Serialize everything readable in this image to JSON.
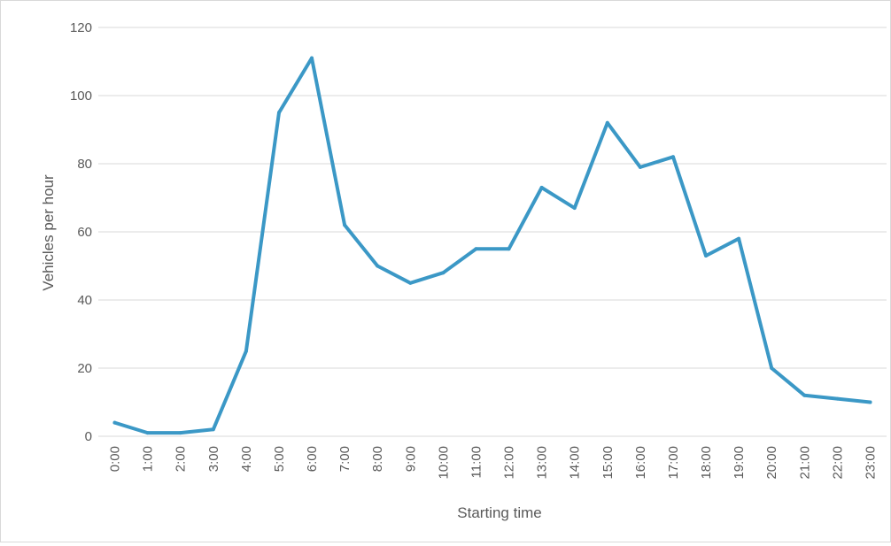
{
  "chart_data": {
    "type": "line",
    "title": "",
    "xlabel": "Starting time",
    "ylabel": "Vehicles per hour",
    "ylim": [
      0,
      120
    ],
    "yticks": [
      0,
      20,
      40,
      60,
      80,
      100,
      120
    ],
    "grid": "horizontal",
    "legend": "none",
    "categories": [
      "0:00",
      "1:00",
      "2:00",
      "3:00",
      "4:00",
      "5:00",
      "6:00",
      "7:00",
      "8:00",
      "9:00",
      "10:00",
      "11:00",
      "12:00",
      "13:00",
      "14:00",
      "15:00",
      "16:00",
      "17:00",
      "18:00",
      "19:00",
      "20:00",
      "21:00",
      "22:00",
      "23:00"
    ],
    "series": [
      {
        "values": [
          4,
          1,
          1,
          2,
          25,
          95,
          111,
          62,
          50,
          45,
          48,
          55,
          55,
          73,
          67,
          92,
          79,
          82,
          53,
          58,
          20,
          12,
          11,
          10
        ]
      }
    ],
    "colors": {
      "line": "#3b98c6",
      "grid": "#d9d9d9",
      "text": "#595959",
      "border": "#d9d9d9"
    }
  }
}
